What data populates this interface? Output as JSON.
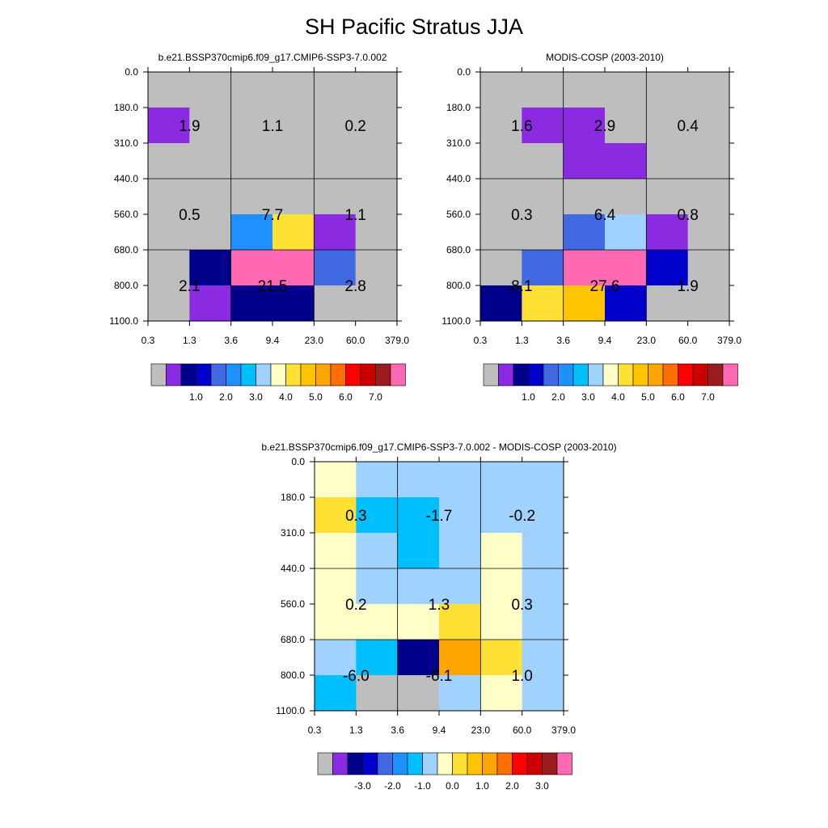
{
  "title": "SH Pacific Stratus JJA",
  "palette": {
    "model_obs": [
      "#bebebe",
      "#8a2be2",
      "#00008b",
      "#0000cd",
      "#4169e1",
      "#1e90ff",
      "#00bfff",
      "#a0d2ff",
      "#ffffc8",
      "#ffe135",
      "#ffc400",
      "#ffa500",
      "#ff6f00",
      "#ff0000",
      "#cd0000",
      "#9b1c1c",
      "#ff69b4"
    ],
    "diff": [
      "#bebebe",
      "#8a2be2",
      "#00008b",
      "#0000cd",
      "#4169e1",
      "#1e90ff",
      "#00bfff",
      "#a0d2ff",
      "#ffffc8",
      "#ffe135",
      "#ffc400",
      "#ffa500",
      "#ff6f00",
      "#ff0000",
      "#cd0000",
      "#9b1c1c",
      "#ff69b4"
    ]
  },
  "chart_data": [
    {
      "type": "heatmap",
      "title": "b.e21.BSSP370cmip6.f09_g17.CMIP6-SSP3-7.0.002",
      "x_ticks": [
        "0.3",
        "1.3",
        "3.6",
        "9.4",
        "23.0",
        "60.0",
        "379.0"
      ],
      "y_ticks": [
        "0.0",
        "180.0",
        "310.0",
        "440.0",
        "560.0",
        "680.0",
        "800.0",
        "1100.0"
      ],
      "cell_colors": [
        [
          0,
          0,
          0,
          0,
          0,
          0
        ],
        [
          1,
          0,
          0,
          0,
          0,
          0
        ],
        [
          0,
          0,
          0,
          0,
          0,
          0
        ],
        [
          0,
          0,
          0,
          0,
          0,
          0
        ],
        [
          0,
          0,
          5,
          9,
          1,
          0
        ],
        [
          0,
          2,
          16,
          16,
          4,
          0
        ],
        [
          0,
          1,
          2,
          2,
          0,
          0
        ]
      ],
      "box_labels": [
        [
          "1.9",
          "1.1",
          "0.2"
        ],
        [
          "0.5",
          "7.7",
          "1.1"
        ],
        [
          "2.1",
          "21.5",
          "2.8"
        ]
      ],
      "colorbar_labels": [
        "1.0",
        "2.0",
        "3.0",
        "4.0",
        "5.0",
        "6.0",
        "7.0"
      ]
    },
    {
      "type": "heatmap",
      "title": "MODIS-COSP (2003-2010)",
      "x_ticks": [
        "0.3",
        "1.3",
        "3.6",
        "9.4",
        "23.0",
        "60.0",
        "379.0"
      ],
      "y_ticks": [
        "0.0",
        "180.0",
        "310.0",
        "440.0",
        "560.0",
        "680.0",
        "800.0",
        "1100.0"
      ],
      "cell_colors": [
        [
          0,
          0,
          0,
          0,
          0,
          0
        ],
        [
          0,
          1,
          1,
          0,
          0,
          0
        ],
        [
          0,
          0,
          1,
          1,
          0,
          0
        ],
        [
          0,
          0,
          0,
          0,
          0,
          0
        ],
        [
          0,
          0,
          4,
          7,
          1,
          0
        ],
        [
          0,
          4,
          16,
          16,
          3,
          0
        ],
        [
          2,
          9,
          10,
          3,
          0,
          0
        ]
      ],
      "box_labels": [
        [
          "1.6",
          "2.9",
          "0.4"
        ],
        [
          "0.3",
          "6.4",
          "0.8"
        ],
        [
          "8.1",
          "27.6",
          "1.9"
        ]
      ],
      "colorbar_labels": [
        "1.0",
        "2.0",
        "3.0",
        "4.0",
        "5.0",
        "6.0",
        "7.0"
      ]
    },
    {
      "type": "heatmap",
      "title": "b.e21.BSSP370cmip6.f09_g17.CMIP6-SSP3-7.0.002 - MODIS-COSP (2003-2010)",
      "x_ticks": [
        "0.3",
        "1.3",
        "3.6",
        "9.4",
        "23.0",
        "60.0",
        "379.0"
      ],
      "y_ticks": [
        "0.0",
        "180.0",
        "310.0",
        "440.0",
        "560.0",
        "680.0",
        "800.0",
        "1100.0"
      ],
      "cell_colors": [
        [
          8,
          7,
          7,
          7,
          7,
          7
        ],
        [
          9,
          6,
          6,
          7,
          7,
          7
        ],
        [
          8,
          7,
          6,
          7,
          8,
          7
        ],
        [
          8,
          7,
          7,
          7,
          8,
          7
        ],
        [
          8,
          8,
          8,
          9,
          8,
          7
        ],
        [
          7,
          6,
          2,
          11,
          9,
          7
        ],
        [
          6,
          0,
          0,
          7,
          8,
          7
        ]
      ],
      "box_labels": [
        [
          "0.3",
          "-1.7",
          "-0.2"
        ],
        [
          "0.2",
          "1.3",
          "0.3"
        ],
        [
          "-6.0",
          "-6.1",
          "1.0"
        ]
      ],
      "colorbar_labels": [
        "-3.0",
        "-2.0",
        "-1.0",
        "0.0",
        "1.0",
        "2.0",
        "3.0"
      ]
    }
  ]
}
